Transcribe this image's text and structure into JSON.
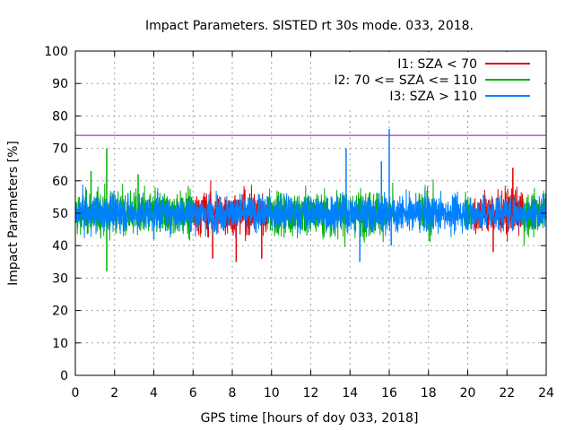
{
  "chart_data": {
    "type": "line",
    "title": "Impact Parameters. SISTED rt 30s mode. 033, 2018.",
    "xlabel": "GPS time [hours of doy 033, 2018]",
    "ylabel": "Impact Parameters [%]",
    "xlim": [
      0,
      24
    ],
    "ylim": [
      0,
      100
    ],
    "xticks": [
      0,
      2,
      4,
      6,
      8,
      10,
      12,
      14,
      16,
      18,
      20,
      22,
      24
    ],
    "yticks": [
      0,
      10,
      20,
      30,
      40,
      50,
      60,
      70,
      80,
      90,
      100
    ],
    "grid": true,
    "legend_position": "top-right",
    "reference_line": {
      "y": 74,
      "color": "#9400d3"
    },
    "series": [
      {
        "name": "I1: SZA < 70",
        "color": "#e00000",
        "segments": [
          [
            6.0,
            9.8
          ],
          [
            20.3,
            22.8
          ]
        ],
        "mean": 50,
        "spread": 6,
        "extremes": [
          [
            7.0,
            36
          ],
          [
            8.2,
            35
          ],
          [
            9.5,
            36
          ],
          [
            21.3,
            38
          ],
          [
            22.3,
            64
          ]
        ]
      },
      {
        "name": "I2: 70 <= SZA <= 110",
        "color": "#00b000",
        "segments": [
          [
            0.0,
            6.0
          ],
          [
            9.8,
            16.2
          ],
          [
            17.5,
            18.3
          ],
          [
            19.8,
            20.3
          ],
          [
            22.8,
            24.0
          ]
        ],
        "mean": 50,
        "spread": 6,
        "extremes": [
          [
            1.6,
            32
          ],
          [
            1.6,
            70
          ],
          [
            0.8,
            63
          ],
          [
            3.2,
            62
          ],
          [
            5.8,
            42
          ]
        ]
      },
      {
        "name": "I3: SZA > 110",
        "color": "#0080ff",
        "segments": [
          [
            0.0,
            24.0
          ]
        ],
        "mean": 50,
        "spread": 5,
        "extremes": [
          [
            13.8,
            70
          ],
          [
            14.5,
            35
          ],
          [
            16.0,
            76
          ],
          [
            15.6,
            66
          ],
          [
            16.1,
            40
          ],
          [
            4.0,
            42
          ]
        ]
      }
    ]
  }
}
